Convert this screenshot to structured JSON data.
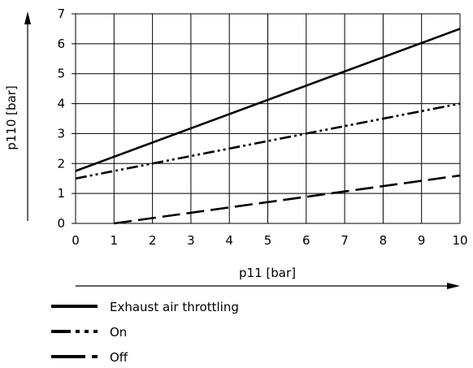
{
  "chart_data": {
    "type": "line",
    "xlabel": "p11 [bar]",
    "ylabel": "p110 [bar]",
    "xlim": [
      0,
      10
    ],
    "ylim": [
      0,
      7
    ],
    "x_ticks": [
      "0",
      "1",
      "2",
      "3",
      "4",
      "5",
      "6",
      "7",
      "8",
      "9",
      "10"
    ],
    "y_ticks": [
      "0",
      "1",
      "2",
      "3",
      "4",
      "5",
      "6",
      "7"
    ],
    "grid": true,
    "legend_position": "below",
    "series": [
      {
        "name": "Exhaust air throttling",
        "style": "solid",
        "x": [
          0,
          10
        ],
        "y": [
          1.75,
          6.5
        ]
      },
      {
        "name": "On",
        "style": "dash-dot-dot",
        "x": [
          0,
          10
        ],
        "y": [
          1.5,
          4.0
        ]
      },
      {
        "name": "Off",
        "style": "dashed",
        "x": [
          1,
          10
        ],
        "y": [
          0.0,
          1.6
        ]
      }
    ]
  }
}
